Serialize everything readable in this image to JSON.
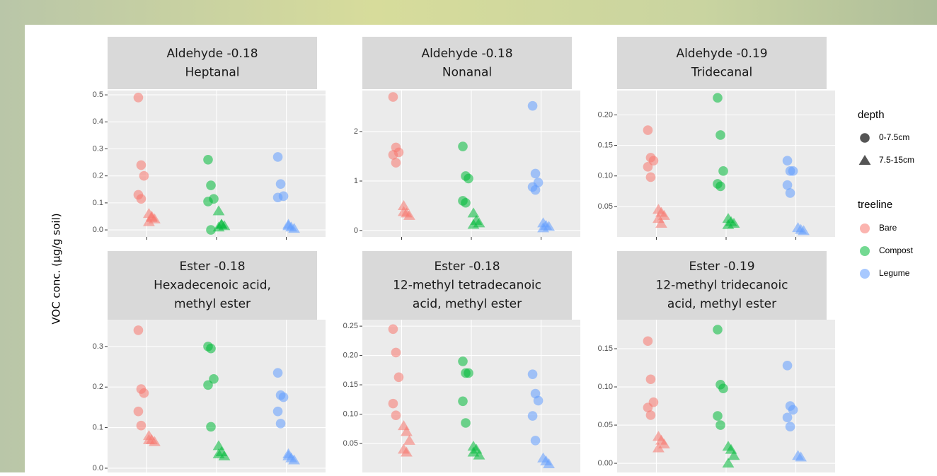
{
  "y_label": "VOC conc. (μg/g soil)",
  "legend": {
    "depth": {
      "title": "depth",
      "items": [
        {
          "label": "0-7.5cm",
          "shape": "circle"
        },
        {
          "label": "7.5-15cm",
          "shape": "triangle"
        }
      ]
    },
    "treeline": {
      "title": "treeline",
      "items": [
        {
          "label": "Bare",
          "color": "#f8766d"
        },
        {
          "label": "Compost",
          "color": "#00ba38"
        },
        {
          "label": "Legume",
          "color": "#619cff"
        }
      ]
    }
  },
  "chart_data": [
    {
      "type": "scatter",
      "title": [
        "Aldehyde -0.18",
        "Heptanal"
      ],
      "ylim": [
        -0.026,
        0.516
      ],
      "yticks": [
        {
          "value": 0,
          "label": "0.0"
        },
        0.1,
        0.2,
        0.3,
        0.4,
        0.5
      ],
      "points": [
        [
          [
            0.49,
            0.24,
            0.2,
            0.13,
            0.115
          ],
          [
            0.06,
            0.05,
            0.04,
            0.03,
            0.045
          ]
        ],
        [
          [
            0.26,
            0.165,
            0.115,
            0.105,
            0.0
          ],
          [
            0.07,
            0.02,
            0.015,
            0.01,
            0.02
          ]
        ],
        [
          [
            0.27,
            0.17,
            0.125,
            0.12
          ],
          [
            0.02,
            0.01,
            0.005,
            0.015
          ]
        ]
      ]
    },
    {
      "type": "scatter",
      "title": [
        "Aldehyde -0.18",
        "Nonanal"
      ],
      "ylim": [
        -0.13,
        2.83
      ],
      "yticks": [
        0,
        1,
        2
      ],
      "points": [
        [
          [
            2.7,
            1.68,
            1.58,
            1.53,
            1.37
          ],
          [
            0.5,
            0.35,
            0.3,
            0.38
          ]
        ],
        [
          [
            1.7,
            1.1,
            1.05,
            0.6,
            0.56
          ],
          [
            0.35,
            0.2,
            0.15,
            0.12
          ]
        ],
        [
          [
            2.52,
            1.15,
            0.97,
            0.88,
            0.82
          ],
          [
            0.15,
            0.1,
            0.08,
            0.05
          ]
        ]
      ]
    },
    {
      "type": "scatter",
      "title": [
        "Aldehyde -0.19",
        "Tridecanal"
      ],
      "ylim": [
        0,
        0.24
      ],
      "yticks": [
        0.05,
        {
          "value": 0.1,
          "label": "0.10"
        },
        0.15,
        {
          "value": 0.2,
          "label": "0.20"
        }
      ],
      "points": [
        [
          [
            0.175,
            0.13,
            0.125,
            0.115,
            0.098
          ],
          [
            0.045,
            0.04,
            0.035,
            0.03,
            0.022
          ]
        ],
        [
          [
            0.228,
            0.167,
            0.108,
            0.087,
            0.083
          ],
          [
            0.03,
            0.025,
            0.022,
            0.02
          ]
        ],
        [
          [
            0.125,
            0.108,
            0.108,
            0.085,
            0.072
          ],
          [
            0.015,
            0.012,
            0.01
          ]
        ]
      ]
    },
    {
      "type": "scatter",
      "title": [
        "Ester -0.18",
        "Hexadecenoic acid,",
        "methyl ester"
      ],
      "ylim": [
        -0.0105,
        0.366
      ],
      "yticks": [
        {
          "value": 0,
          "label": "0.0"
        },
        0.1,
        0.2,
        0.3
      ],
      "points": [
        [
          [
            0.34,
            0.195,
            0.185,
            0.14,
            0.105
          ],
          [
            0.08,
            0.07,
            0.065,
            0.07
          ]
        ],
        [
          [
            0.3,
            0.295,
            0.22,
            0.205,
            0.102
          ],
          [
            0.055,
            0.04,
            0.03,
            0.035
          ]
        ],
        [
          [
            0.235,
            0.18,
            0.175,
            0.14,
            0.11
          ],
          [
            0.035,
            0.025,
            0.02,
            0.03
          ]
        ]
      ]
    },
    {
      "type": "scatter",
      "title": [
        "Ester -0.18",
        "12-methyl tetradecanoic",
        "acid, methyl ester"
      ],
      "ylim": [
        0.0006,
        0.261
      ],
      "yticks": [
        0.05,
        {
          "value": 0.1,
          "label": "0.10"
        },
        0.15,
        {
          "value": 0.2,
          "label": "0.20"
        },
        0.25
      ],
      "points": [
        [
          [
            0.245,
            0.205,
            0.163,
            0.118,
            0.098
          ],
          [
            0.08,
            0.07,
            0.055,
            0.04,
            0.035
          ]
        ],
        [
          [
            0.19,
            0.17,
            0.17,
            0.122,
            0.085
          ],
          [
            0.045,
            0.04,
            0.03,
            0.035
          ]
        ],
        [
          [
            0.168,
            0.135,
            0.123,
            0.097,
            0.055
          ],
          [
            0.025,
            0.02,
            0.015
          ]
        ]
      ]
    },
    {
      "type": "scatter",
      "title": [
        "Ester -0.19",
        "12-methyl tridecanoic",
        "acid, methyl ester"
      ],
      "ylim": [
        -0.012,
        0.188
      ],
      "yticks": [
        {
          "value": 0,
          "label": "0.00"
        },
        0.05,
        {
          "value": 0.1,
          "label": "0.10"
        },
        0.15
      ],
      "points": [
        [
          [
            0.16,
            0.11,
            0.08,
            0.073,
            0.063
          ],
          [
            0.035,
            0.03,
            0.025,
            0.02
          ]
        ],
        [
          [
            0.175,
            0.103,
            0.098,
            0.062,
            0.05
          ],
          [
            0.022,
            0.018,
            0.01,
            0.0
          ]
        ],
        [
          [
            0.128,
            0.075,
            0.07,
            0.06,
            0.048
          ],
          [
            0.01,
            0.008
          ]
        ]
      ]
    }
  ]
}
